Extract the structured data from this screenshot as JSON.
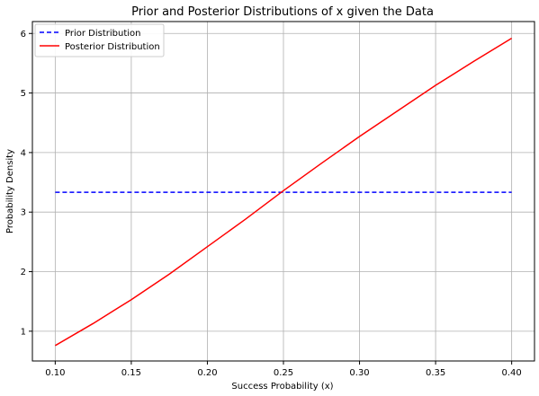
{
  "chart_data": {
    "type": "line",
    "title": "Prior and Posterior Distributions of x given the Data",
    "xlabel": "Success Probability (x)",
    "ylabel": "Probability Density",
    "xlim": [
      0.085,
      0.415
    ],
    "ylim": [
      0.5,
      6.2
    ],
    "xticks": [
      0.1,
      0.15,
      0.2,
      0.25,
      0.3,
      0.35,
      0.4
    ],
    "xtick_labels": [
      "0.10",
      "0.15",
      "0.20",
      "0.25",
      "0.30",
      "0.35",
      "0.40"
    ],
    "yticks": [
      1,
      2,
      3,
      4,
      5,
      6
    ],
    "ytick_labels": [
      "1",
      "2",
      "3",
      "4",
      "5",
      "6"
    ],
    "grid": true,
    "legend": "top-left",
    "series": [
      {
        "name": "Prior Distribution",
        "color": "#0000ff",
        "style": "dashed",
        "x": [
          0.1,
          0.4
        ],
        "y": [
          3.333,
          3.333
        ]
      },
      {
        "name": "Posterior Distribution",
        "color": "#ff0000",
        "style": "solid",
        "x": [
          0.1,
          0.125,
          0.15,
          0.175,
          0.2,
          0.225,
          0.25,
          0.275,
          0.3,
          0.325,
          0.35,
          0.375,
          0.4
        ],
        "y": [
          0.76,
          1.13,
          1.53,
          1.96,
          2.42,
          2.88,
          3.36,
          3.82,
          4.27,
          4.7,
          5.13,
          5.53,
          5.92
        ]
      }
    ]
  }
}
